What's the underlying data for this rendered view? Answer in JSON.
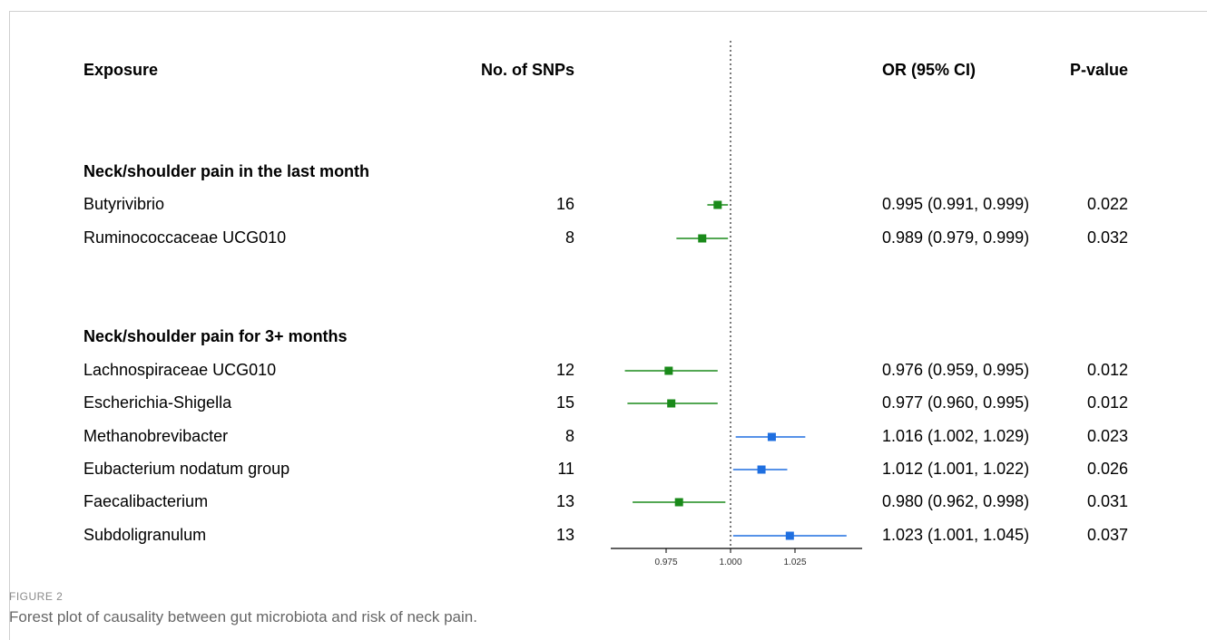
{
  "columns": {
    "exposure": "Exposure",
    "nsnps": "No. of SNPs",
    "or": "OR (95% CI)",
    "pvalue": "P-value"
  },
  "groups": [
    {
      "title": "Neck/shoulder pain in the last month",
      "rows": [
        {
          "exposure": "Butyrivibrio",
          "nsnps": "16",
          "or_text": "0.995 (0.991, 0.999)",
          "pvalue": "0.022",
          "or": 0.995,
          "lo": 0.991,
          "hi": 0.999
        },
        {
          "exposure": "Ruminococcaceae UCG010",
          "nsnps": "8",
          "or_text": "0.989 (0.979, 0.999)",
          "pvalue": "0.032",
          "or": 0.989,
          "lo": 0.979,
          "hi": 0.999
        }
      ]
    },
    {
      "title": "Neck/shoulder pain for 3+ months",
      "rows": [
        {
          "exposure": "Lachnospiraceae UCG010",
          "nsnps": "12",
          "or_text": "0.976 (0.959, 0.995)",
          "pvalue": "0.012",
          "or": 0.976,
          "lo": 0.959,
          "hi": 0.995
        },
        {
          "exposure": "Escherichia-Shigella",
          "nsnps": "15",
          "or_text": "0.977 (0.960, 0.995)",
          "pvalue": "0.012",
          "or": 0.977,
          "lo": 0.96,
          "hi": 0.995
        },
        {
          "exposure": "Methanobrevibacter",
          "nsnps": "8",
          "or_text": "1.016 (1.002, 1.029)",
          "pvalue": "0.023",
          "or": 1.016,
          "lo": 1.002,
          "hi": 1.029
        },
        {
          "exposure": "Eubacterium nodatum group",
          "nsnps": "11",
          "or_text": "1.012 (1.001, 1.022)",
          "pvalue": "0.026",
          "or": 1.012,
          "lo": 1.001,
          "hi": 1.022
        },
        {
          "exposure": "Faecalibacterium",
          "nsnps": "13",
          "or_text": "0.980 (0.962, 0.998)",
          "pvalue": "0.031",
          "or": 0.98,
          "lo": 0.962,
          "hi": 0.998
        },
        {
          "exposure": "Subdoligranulum",
          "nsnps": "13",
          "or_text": "1.023 (1.001, 1.045)",
          "pvalue": "0.037",
          "or": 1.023,
          "lo": 1.001,
          "hi": 1.045
        }
      ]
    }
  ],
  "chart_data": {
    "type": "forest",
    "reference_line": 1.0,
    "xlim": [
      0.95,
      1.052
    ],
    "ticks": [
      0.975,
      1.0,
      1.025
    ],
    "tick_labels": [
      "0.975",
      "1.000",
      "1.025"
    ],
    "colors": {
      "protective": "#1a8a1a",
      "risk": "#1f6fe0"
    },
    "points": [
      {
        "label": "Butyrivibrio",
        "or": 0.995,
        "lo": 0.991,
        "hi": 0.999
      },
      {
        "label": "Ruminococcaceae UCG010",
        "or": 0.989,
        "lo": 0.979,
        "hi": 0.999
      },
      {
        "label": "Lachnospiraceae UCG010",
        "or": 0.976,
        "lo": 0.959,
        "hi": 0.995
      },
      {
        "label": "Escherichia-Shigella",
        "or": 0.977,
        "lo": 0.96,
        "hi": 0.995
      },
      {
        "label": "Methanobrevibacter",
        "or": 1.016,
        "lo": 1.002,
        "hi": 1.029
      },
      {
        "label": "Eubacterium nodatum group",
        "or": 1.012,
        "lo": 1.001,
        "hi": 1.022
      },
      {
        "label": "Faecalibacterium",
        "or": 0.98,
        "lo": 0.962,
        "hi": 0.998
      },
      {
        "label": "Subdoligranulum",
        "or": 1.023,
        "lo": 1.001,
        "hi": 1.045
      }
    ]
  },
  "figure": {
    "label": "FIGURE 2",
    "caption": "Forest plot of causality between gut microbiota and risk of neck pain."
  }
}
